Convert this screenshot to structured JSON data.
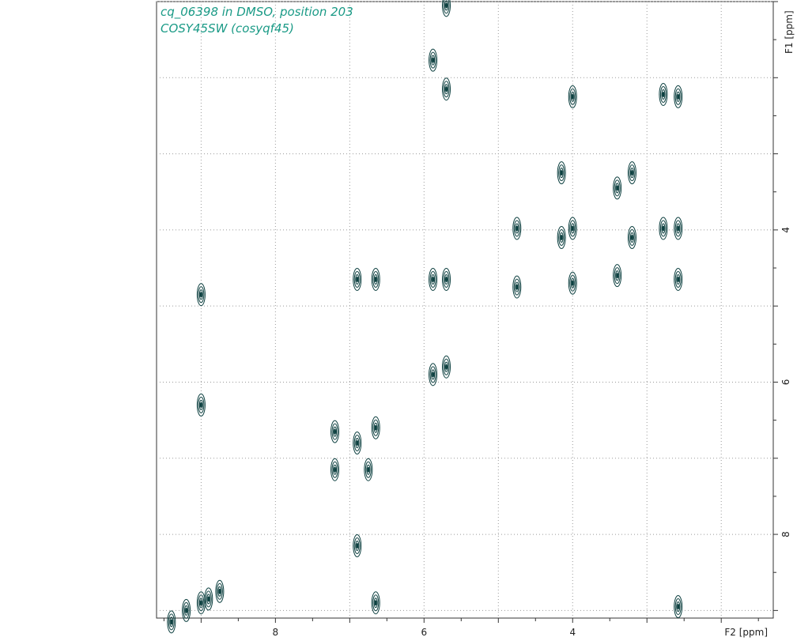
{
  "chart_data": {
    "type": "contour",
    "title_line1": "cq_06398 in DMSO, position 203",
    "title_line2": "COSY45SW (cosyqf45)",
    "xlabel": "F2 [ppm]",
    "ylabel": "F1 [ppm]",
    "xlim": [
      9.6,
      1.3
    ],
    "ylim": [
      1.0,
      9.1
    ],
    "x_ticks_labeled": [
      8,
      6,
      4
    ],
    "y_ticks_labeled": [
      4,
      6,
      8
    ],
    "grid": true,
    "contour_color": "#0d4040",
    "peaks": [
      {
        "x": 5.7,
        "y": 1.05
      },
      {
        "x": 5.88,
        "y": 1.77
      },
      {
        "x": 5.7,
        "y": 2.15
      },
      {
        "x": 4.0,
        "y": 2.25
      },
      {
        "x": 2.78,
        "y": 2.22
      },
      {
        "x": 2.58,
        "y": 2.25
      },
      {
        "x": 4.15,
        "y": 3.25
      },
      {
        "x": 3.4,
        "y": 3.45
      },
      {
        "x": 3.2,
        "y": 3.25
      },
      {
        "x": 4.75,
        "y": 3.98
      },
      {
        "x": 4.0,
        "y": 3.98
      },
      {
        "x": 4.15,
        "y": 4.1
      },
      {
        "x": 3.2,
        "y": 4.1
      },
      {
        "x": 2.78,
        "y": 3.98
      },
      {
        "x": 2.58,
        "y": 3.98
      },
      {
        "x": 6.9,
        "y": 4.65
      },
      {
        "x": 6.65,
        "y": 4.65
      },
      {
        "x": 5.88,
        "y": 4.65
      },
      {
        "x": 5.7,
        "y": 4.65
      },
      {
        "x": 4.75,
        "y": 4.75
      },
      {
        "x": 4.0,
        "y": 4.7
      },
      {
        "x": 3.4,
        "y": 4.6
      },
      {
        "x": 2.58,
        "y": 4.65
      },
      {
        "x": 9.0,
        "y": 4.85
      },
      {
        "x": 5.88,
        "y": 5.9
      },
      {
        "x": 5.7,
        "y": 5.8
      },
      {
        "x": 9.0,
        "y": 6.3
      },
      {
        "x": 6.9,
        "y": 6.8
      },
      {
        "x": 6.65,
        "y": 6.6
      },
      {
        "x": 7.2,
        "y": 6.65
      },
      {
        "x": 7.2,
        "y": 7.15
      },
      {
        "x": 6.75,
        "y": 7.15
      },
      {
        "x": 6.9,
        "y": 8.15
      },
      {
        "x": 9.2,
        "y": 9.0
      },
      {
        "x": 9.0,
        "y": 8.9
      },
      {
        "x": 8.9,
        "y": 8.85
      },
      {
        "x": 8.75,
        "y": 8.75
      },
      {
        "x": 6.65,
        "y": 8.9
      },
      {
        "x": 2.58,
        "y": 8.95
      },
      {
        "x": 9.4,
        "y": 9.15
      }
    ]
  }
}
